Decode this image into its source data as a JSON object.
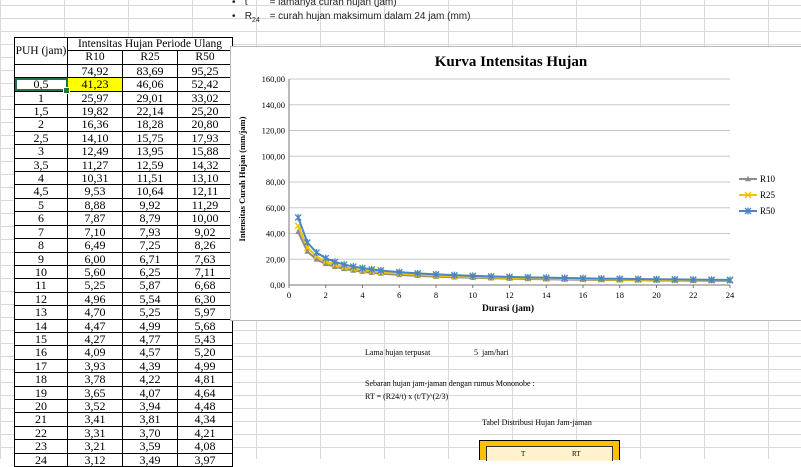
{
  "notes": [
    {
      "bullet": "•",
      "symbol": "t",
      "text": "= lamanya curah hujan (jam)"
    },
    {
      "bullet": "•",
      "symbol": "R24",
      "text": "= curah hujan maksimum dalam 24 jam (mm)"
    }
  ],
  "table": {
    "col_header": "PUH (jam)",
    "group_header": "Intensitas Hujan Periode Ulang",
    "series_headers": [
      "R10",
      "R25",
      "R50"
    ],
    "first_row": [
      "",
      "74,92",
      "83,69",
      "95,25"
    ],
    "rows": [
      [
        "0,5",
        "41,23",
        "46,06",
        "52,42"
      ],
      [
        "1",
        "25,97",
        "29,01",
        "33,02"
      ],
      [
        "1,5",
        "19,82",
        "22,14",
        "25,20"
      ],
      [
        "2",
        "16,36",
        "18,28",
        "20,80"
      ],
      [
        "2,5",
        "14,10",
        "15,75",
        "17,93"
      ],
      [
        "3",
        "12,49",
        "13,95",
        "15,88"
      ],
      [
        "3,5",
        "11,27",
        "12,59",
        "14,32"
      ],
      [
        "4",
        "10,31",
        "11,51",
        "13,10"
      ],
      [
        "4,5",
        "9,53",
        "10,64",
        "12,11"
      ],
      [
        "5",
        "8,88",
        "9,92",
        "11,29"
      ],
      [
        "6",
        "7,87",
        "8,79",
        "10,00"
      ],
      [
        "7",
        "7,10",
        "7,93",
        "9,02"
      ],
      [
        "8",
        "6,49",
        "7,25",
        "8,26"
      ],
      [
        "9",
        "6,00",
        "6,71",
        "7,63"
      ],
      [
        "10",
        "5,60",
        "6,25",
        "7,11"
      ],
      [
        "11",
        "5,25",
        "5,87",
        "6,68"
      ],
      [
        "12",
        "4,96",
        "5,54",
        "6,30"
      ],
      [
        "13",
        "4,70",
        "5,25",
        "5,97"
      ],
      [
        "14",
        "4,47",
        "4,99",
        "5,68"
      ],
      [
        "15",
        "4,27",
        "4,77",
        "5,43"
      ],
      [
        "16",
        "4,09",
        "4,57",
        "5,20"
      ],
      [
        "17",
        "3,93",
        "4,39",
        "4,99"
      ],
      [
        "18",
        "3,78",
        "4,22",
        "4,81"
      ],
      [
        "19",
        "3,65",
        "4,07",
        "4,64"
      ],
      [
        "20",
        "3,52",
        "3,94",
        "4,48"
      ],
      [
        "21",
        "3,41",
        "3,81",
        "4,34"
      ],
      [
        "22",
        "3,31",
        "3,70",
        "4,21"
      ],
      [
        "23",
        "3,21",
        "3,59",
        "4,08"
      ],
      [
        "24",
        "3,12",
        "3,49",
        "3,97"
      ]
    ]
  },
  "colors": {
    "r10": "#8c8c8c",
    "r25": "#f2c200",
    "r50": "#4a86c5",
    "selection": "#217346",
    "highlight": "#ffff00",
    "table_header": "#ffc000"
  },
  "chart_data": {
    "type": "line",
    "title": "Kurva Intensitas Hujan",
    "xlabel": "Durasi (jam)",
    "ylabel": "Intensitas Curah Hujan (mm/jam)",
    "xlim": [
      0,
      24
    ],
    "ylim": [
      0,
      160
    ],
    "xticks": [
      "0",
      "2",
      "4",
      "6",
      "8",
      "10",
      "12",
      "14",
      "16",
      "18",
      "20",
      "22",
      "24"
    ],
    "yticks": [
      "0,00",
      "20,00",
      "40,00",
      "60,00",
      "80,00",
      "100,00",
      "120,00",
      "140,00",
      "160,00"
    ],
    "grid": "horizontal",
    "legend": "right",
    "x": [
      0.5,
      1,
      1.5,
      2,
      2.5,
      3,
      3.5,
      4,
      4.5,
      5,
      6,
      7,
      8,
      9,
      10,
      11,
      12,
      13,
      14,
      15,
      16,
      17,
      18,
      19,
      20,
      21,
      22,
      23,
      24
    ],
    "series": [
      {
        "name": "R10",
        "marker": "triangle",
        "values": [
          41.23,
          25.97,
          19.82,
          16.36,
          14.1,
          12.49,
          11.27,
          10.31,
          9.53,
          8.88,
          7.87,
          7.1,
          6.49,
          6.0,
          5.6,
          5.25,
          4.96,
          4.7,
          4.47,
          4.27,
          4.09,
          3.93,
          3.78,
          3.65,
          3.52,
          3.41,
          3.31,
          3.21,
          3.12
        ]
      },
      {
        "name": "R25",
        "marker": "x",
        "values": [
          46.06,
          29.01,
          22.14,
          18.28,
          15.75,
          13.95,
          12.59,
          11.51,
          10.64,
          9.92,
          8.79,
          7.93,
          7.25,
          6.71,
          6.25,
          5.87,
          5.54,
          5.25,
          4.99,
          4.77,
          4.57,
          4.39,
          4.22,
          4.07,
          3.94,
          3.81,
          3.7,
          3.59,
          3.49
        ]
      },
      {
        "name": "R50",
        "marker": "asterisk",
        "values": [
          52.42,
          33.02,
          25.2,
          20.8,
          17.93,
          15.88,
          14.32,
          13.1,
          12.11,
          11.29,
          10.0,
          9.02,
          8.26,
          7.63,
          7.11,
          6.68,
          6.3,
          5.97,
          5.68,
          5.43,
          5.2,
          4.99,
          4.81,
          4.64,
          4.48,
          4.34,
          4.21,
          4.08,
          3.97
        ]
      }
    ]
  },
  "lower": {
    "lama_label": "Lama hujan terpusat",
    "lama_value": "5",
    "lama_unit": "jam/hari",
    "sebaran": "Sebaran hujan jam-jaman dengan rumus Mononobe :",
    "formula": "RT = (R24/t) x (t/T)^(2/3)",
    "table_title": "Tabel Distribusi Hujan Jam-jaman",
    "col_t": "T",
    "col_rt": "RT"
  }
}
